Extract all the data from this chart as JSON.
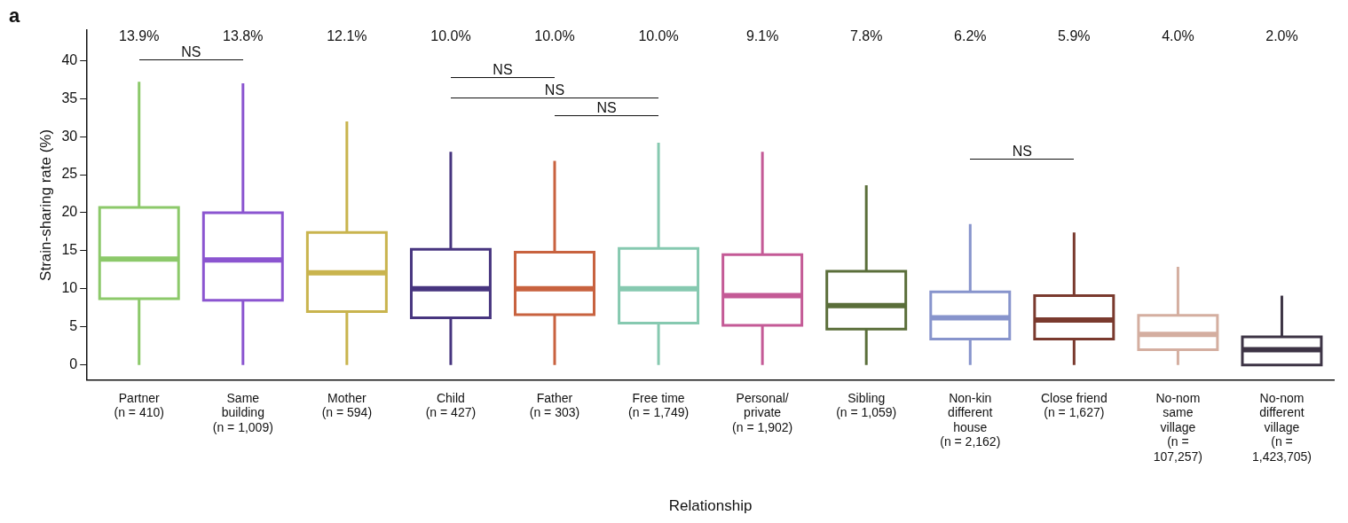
{
  "chart_data": {
    "type": "box",
    "title": "a",
    "xlabel": "Relationship",
    "ylabel": "Strain-sharing rate (%)",
    "categories": [
      "Partner\n(n = 410)",
      "Same\nbuilding\n(n = 1,009)",
      "Mother\n(n = 594)",
      "Child\n(n = 427)",
      "Father\n(n = 303)",
      "Free time\n(n = 1,749)",
      "Personal/\nprivate\n(n = 1,902)",
      "Sibling\n(n = 1,059)",
      "Non-kin\ndifferent\nhouse\n(n = 2,162)",
      "Close friend\n(n = 1,627)",
      "No-nom\nsame\nvillage\n(n =\n107,257)",
      "No-nom\ndifferent\nvillage\n(n =\n1,423,705)"
    ],
    "colors": [
      "#8cc96a",
      "#8b55d0",
      "#c9b44e",
      "#47357f",
      "#c8623f",
      "#86c9b0",
      "#c45a96",
      "#5a6e3a",
      "#8794cc",
      "#7a3a2e",
      "#d4aea0",
      "#3d3445"
    ],
    "boxes": [
      {
        "low": 0,
        "q1": 8.7,
        "median": 13.9,
        "q3": 20.7,
        "high": 37.2
      },
      {
        "low": 0,
        "q1": 8.5,
        "median": 13.8,
        "q3": 20.0,
        "high": 37.0
      },
      {
        "low": 0,
        "q1": 7.0,
        "median": 12.1,
        "q3": 17.4,
        "high": 32.0
      },
      {
        "low": 0,
        "q1": 6.2,
        "median": 10.0,
        "q3": 15.2,
        "high": 28.0
      },
      {
        "low": 0,
        "q1": 6.6,
        "median": 10.0,
        "q3": 14.8,
        "high": 26.8
      },
      {
        "low": 0,
        "q1": 5.5,
        "median": 10.0,
        "q3": 15.3,
        "high": 29.2
      },
      {
        "low": 0,
        "q1": 5.2,
        "median": 9.1,
        "q3": 14.5,
        "high": 28.0
      },
      {
        "low": 0,
        "q1": 4.7,
        "median": 7.8,
        "q3": 12.3,
        "high": 23.6
      },
      {
        "low": 0,
        "q1": 3.4,
        "median": 6.2,
        "q3": 9.6,
        "high": 18.5
      },
      {
        "low": 0,
        "q1": 3.4,
        "median": 5.9,
        "q3": 9.1,
        "high": 17.4
      },
      {
        "low": 0,
        "q1": 2.0,
        "median": 4.0,
        "q3": 6.5,
        "high": 12.9
      },
      {
        "low": 0,
        "q1": 0,
        "median": 2.0,
        "q3": 3.7,
        "high": 9.1
      }
    ],
    "value_labels": [
      "13.9%",
      "13.8%",
      "12.1%",
      "10.0%",
      "10.0%",
      "10.0%",
      "9.1%",
      "7.8%",
      "6.2%",
      "5.9%",
      "4.0%",
      "2.0%"
    ],
    "annotations": [
      "NS",
      "NS",
      "NS",
      "NS",
      "NS"
    ],
    "ylim": [
      -2,
      44
    ],
    "yticks": [
      0,
      5,
      10,
      15,
      20,
      25,
      30,
      35,
      40
    ],
    "grid": false,
    "legend": false
  }
}
